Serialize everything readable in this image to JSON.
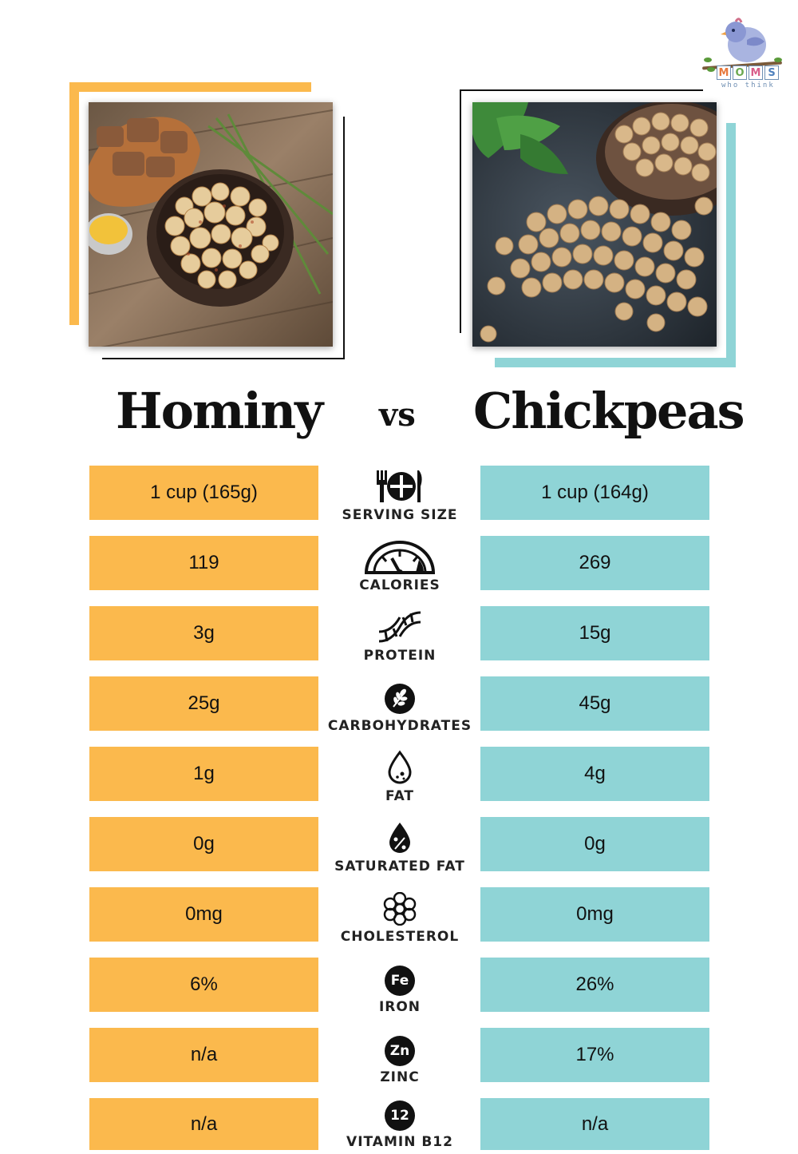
{
  "logo": {
    "blocks": [
      "M",
      "O",
      "M",
      "S"
    ],
    "tagline": "who think",
    "icon": "bird-on-branch-icon"
  },
  "images": {
    "left": "hominy-photo",
    "right": "chickpeas-photo"
  },
  "header": {
    "left_title": "Hominy",
    "vs": "vs",
    "right_title": "Chickpeas"
  },
  "colors": {
    "left_accent": "#fbb94d",
    "right_accent": "#8fd4d6",
    "text": "#111111"
  },
  "rows": [
    {
      "label": "SERVING SIZE",
      "icon": "plate-cutlery-icon",
      "left": "1 cup (165g)",
      "right": "1 cup (164g)"
    },
    {
      "label": "CALORIES",
      "icon": "gauge-icon",
      "left": "119",
      "right": "269"
    },
    {
      "label": "PROTEIN",
      "icon": "dna-icon",
      "left": "3g",
      "right": "15g"
    },
    {
      "label": "CARBOHYDRATES",
      "icon": "wheat-icon",
      "left": "25g",
      "right": "45g"
    },
    {
      "label": "FAT",
      "icon": "drop-icon",
      "left": "1g",
      "right": "4g"
    },
    {
      "label": "SATURATED FAT",
      "icon": "percent-drop-icon",
      "left": "0g",
      "right": "0g"
    },
    {
      "label": "CHOLESTEROL",
      "icon": "cholesterol-molecule-icon",
      "left": "0mg",
      "right": "0mg"
    },
    {
      "label": "IRON",
      "icon": "fe-badge-icon",
      "badge": "Fe",
      "left": "6%",
      "right": "26%"
    },
    {
      "label": "ZINC",
      "icon": "zn-badge-icon",
      "badge": "Zn",
      "left": "n/a",
      "right": "17%"
    },
    {
      "label": "VITAMIN B12",
      "icon": "b12-badge-icon",
      "badge": "12",
      "left": "n/a",
      "right": "n/a"
    }
  ]
}
